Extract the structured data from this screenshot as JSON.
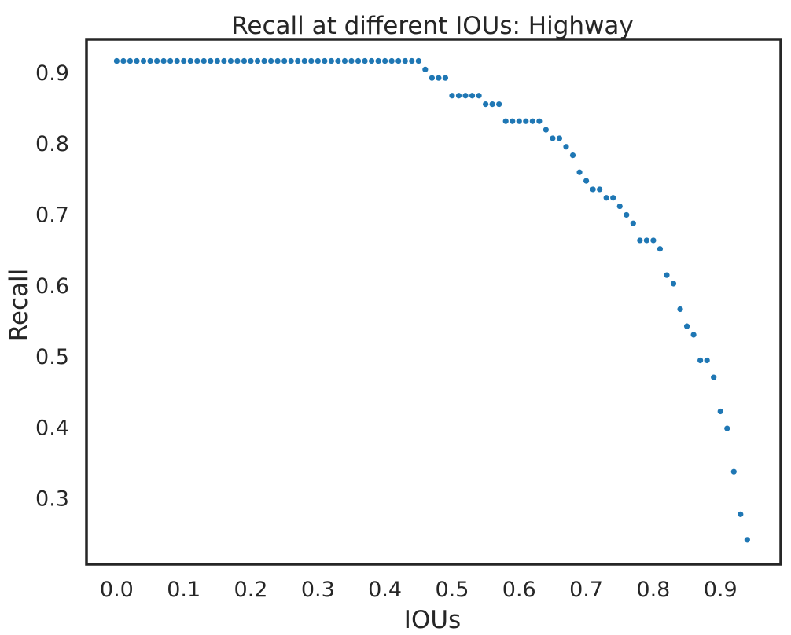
{
  "chart_data": {
    "type": "scatter",
    "title": "Recall at different IOUs: Highway",
    "xlabel": "IOUs",
    "ylabel": "Recall",
    "xlim": [
      -0.045,
      0.99
    ],
    "ylim": [
      0.2065,
      0.9465
    ],
    "xticks": [
      "0.0",
      "0.1",
      "0.2",
      "0.3",
      "0.4",
      "0.5",
      "0.6",
      "0.7",
      "0.8",
      "0.9"
    ],
    "yticks": [
      "0.3",
      "0.4",
      "0.5",
      "0.6",
      "0.7",
      "0.8",
      "0.9"
    ],
    "grid": false,
    "marker_color": "#1f77b4",
    "series": [
      {
        "x": [
          0.0,
          0.01,
          0.02,
          0.03,
          0.04,
          0.05,
          0.06,
          0.07,
          0.08,
          0.09,
          0.1,
          0.11,
          0.12,
          0.13,
          0.14,
          0.15,
          0.16,
          0.17,
          0.18,
          0.19,
          0.2,
          0.21,
          0.22,
          0.23,
          0.24,
          0.25,
          0.26,
          0.27,
          0.28,
          0.29,
          0.3,
          0.31,
          0.32,
          0.33,
          0.34,
          0.35,
          0.36,
          0.37,
          0.38,
          0.39,
          0.4,
          0.41,
          0.42,
          0.43,
          0.44,
          0.45,
          0.46,
          0.47,
          0.48,
          0.49,
          0.5,
          0.51,
          0.52,
          0.53,
          0.54,
          0.55,
          0.56,
          0.57,
          0.58,
          0.59,
          0.6,
          0.61,
          0.62,
          0.63,
          0.64,
          0.65,
          0.66,
          0.67,
          0.68,
          0.69,
          0.7,
          0.71,
          0.72,
          0.73,
          0.74,
          0.75,
          0.76,
          0.77,
          0.78,
          0.79,
          0.8,
          0.81,
          0.82,
          0.83,
          0.84,
          0.85,
          0.86,
          0.87,
          0.88,
          0.89,
          0.9,
          0.91,
          0.92,
          0.93,
          0.94
        ],
        "y": [
          0.916,
          0.916,
          0.916,
          0.916,
          0.916,
          0.916,
          0.916,
          0.916,
          0.916,
          0.916,
          0.916,
          0.916,
          0.916,
          0.916,
          0.916,
          0.916,
          0.916,
          0.916,
          0.916,
          0.916,
          0.916,
          0.916,
          0.916,
          0.916,
          0.916,
          0.916,
          0.916,
          0.916,
          0.916,
          0.916,
          0.916,
          0.916,
          0.916,
          0.916,
          0.916,
          0.916,
          0.916,
          0.916,
          0.916,
          0.916,
          0.916,
          0.916,
          0.916,
          0.916,
          0.916,
          0.916,
          0.904,
          0.892,
          0.892,
          0.892,
          0.867,
          0.867,
          0.867,
          0.867,
          0.867,
          0.855,
          0.855,
          0.855,
          0.831,
          0.831,
          0.831,
          0.831,
          0.831,
          0.831,
          0.819,
          0.807,
          0.807,
          0.795,
          0.783,
          0.759,
          0.747,
          0.735,
          0.735,
          0.723,
          0.723,
          0.711,
          0.699,
          0.687,
          0.663,
          0.663,
          0.663,
          0.651,
          0.614,
          0.602,
          0.566,
          0.542,
          0.53,
          0.494,
          0.494,
          0.47,
          0.422,
          0.398,
          0.337,
          0.277,
          0.241
        ]
      }
    ]
  }
}
